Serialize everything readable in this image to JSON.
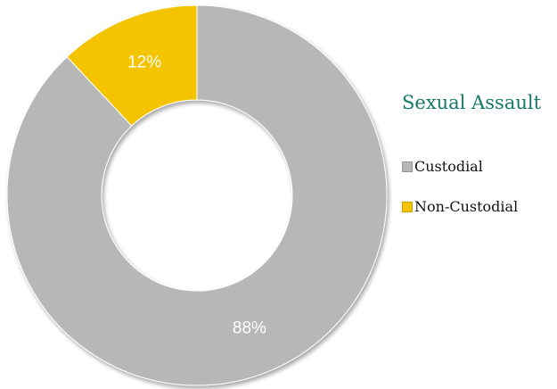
{
  "chart_data": {
    "type": "pie",
    "title": "Sexual Assault",
    "donut": true,
    "legend_position": "right",
    "categories": [
      "Custodial",
      "Non-Custodial"
    ],
    "values": [
      88,
      12
    ],
    "data_labels": [
      "88%",
      "12%"
    ],
    "colors": [
      "#b7b7b7",
      "#f5c400"
    ]
  }
}
